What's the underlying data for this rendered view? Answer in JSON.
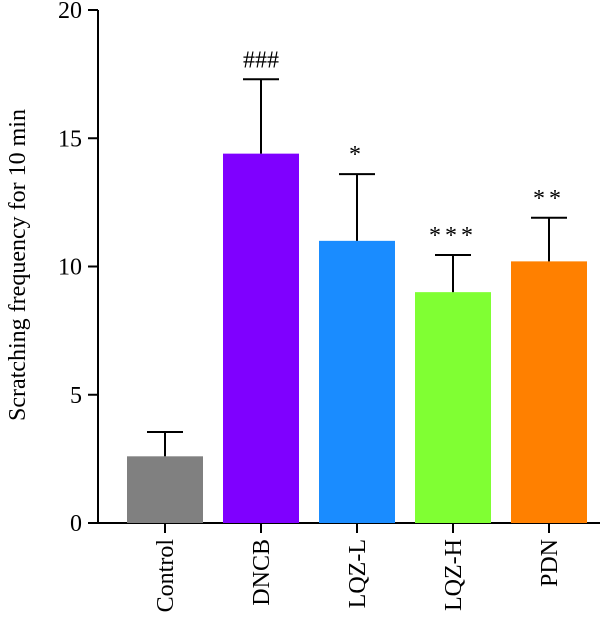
{
  "chart_data": {
    "type": "bar",
    "title": "",
    "xlabel": "",
    "ylabel": "Scratching frequency for 10 min",
    "ylim": [
      0,
      20
    ],
    "yticks": [
      0,
      5,
      10,
      15,
      20
    ],
    "grid": false,
    "categories": [
      "Control",
      "DNCB",
      "LQZ-L",
      "LQZ-H",
      "PDN"
    ],
    "values": [
      2.6,
      14.4,
      11.0,
      9.0,
      10.2
    ],
    "errors": [
      0.95,
      2.9,
      2.6,
      1.45,
      1.7
    ],
    "significance": [
      "",
      "###",
      "*",
      "***",
      "**"
    ],
    "colors": [
      "#808080",
      "#7f00ff",
      "#1a8cff",
      "#80ff33",
      "#ff8000"
    ]
  }
}
